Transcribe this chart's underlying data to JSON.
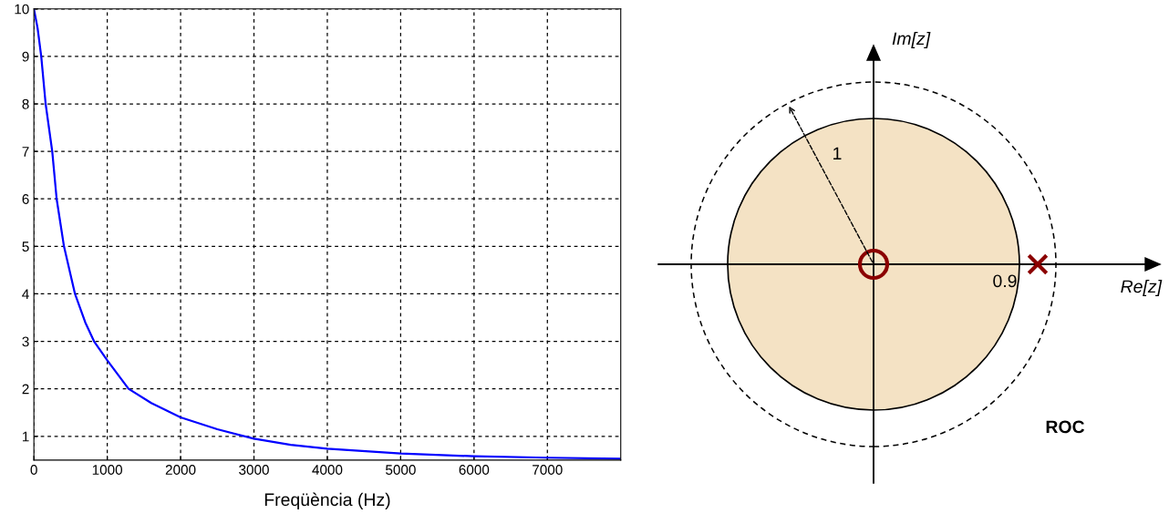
{
  "chart_data": [
    {
      "type": "line",
      "xlabel": "Freqüència (Hz)",
      "x": [
        0,
        50,
        100,
        160,
        250,
        310,
        410,
        560,
        700,
        820,
        1000,
        1290,
        1600,
        2000,
        2500,
        3000,
        3500,
        4000,
        5000,
        6000,
        7000,
        8000
      ],
      "series": [
        {
          "color": "#0000ff",
          "values": [
            10,
            9.6,
            9.0,
            8.0,
            7.0,
            6.0,
            5.0,
            4.0,
            3.4,
            3.0,
            2.6,
            2.0,
            1.7,
            1.4,
            1.15,
            0.95,
            0.82,
            0.74,
            0.64,
            0.58,
            0.55,
            0.53
          ]
        }
      ],
      "xlim": [
        0,
        8000
      ],
      "xticks": [
        0,
        1000,
        2000,
        3000,
        4000,
        5000,
        6000,
        7000
      ],
      "ylim": [
        0.5,
        10
      ],
      "yticks": [
        1,
        2,
        3,
        4,
        5,
        6,
        7,
        8,
        9,
        10
      ],
      "grid": true,
      "line_style": "solid",
      "marker": "none"
    },
    {
      "type": "other",
      "xlabel": "Re[z]",
      "ylabel": "Im[z]",
      "annotations": [
        "1",
        "0.9",
        "ROC"
      ]
    }
  ]
}
